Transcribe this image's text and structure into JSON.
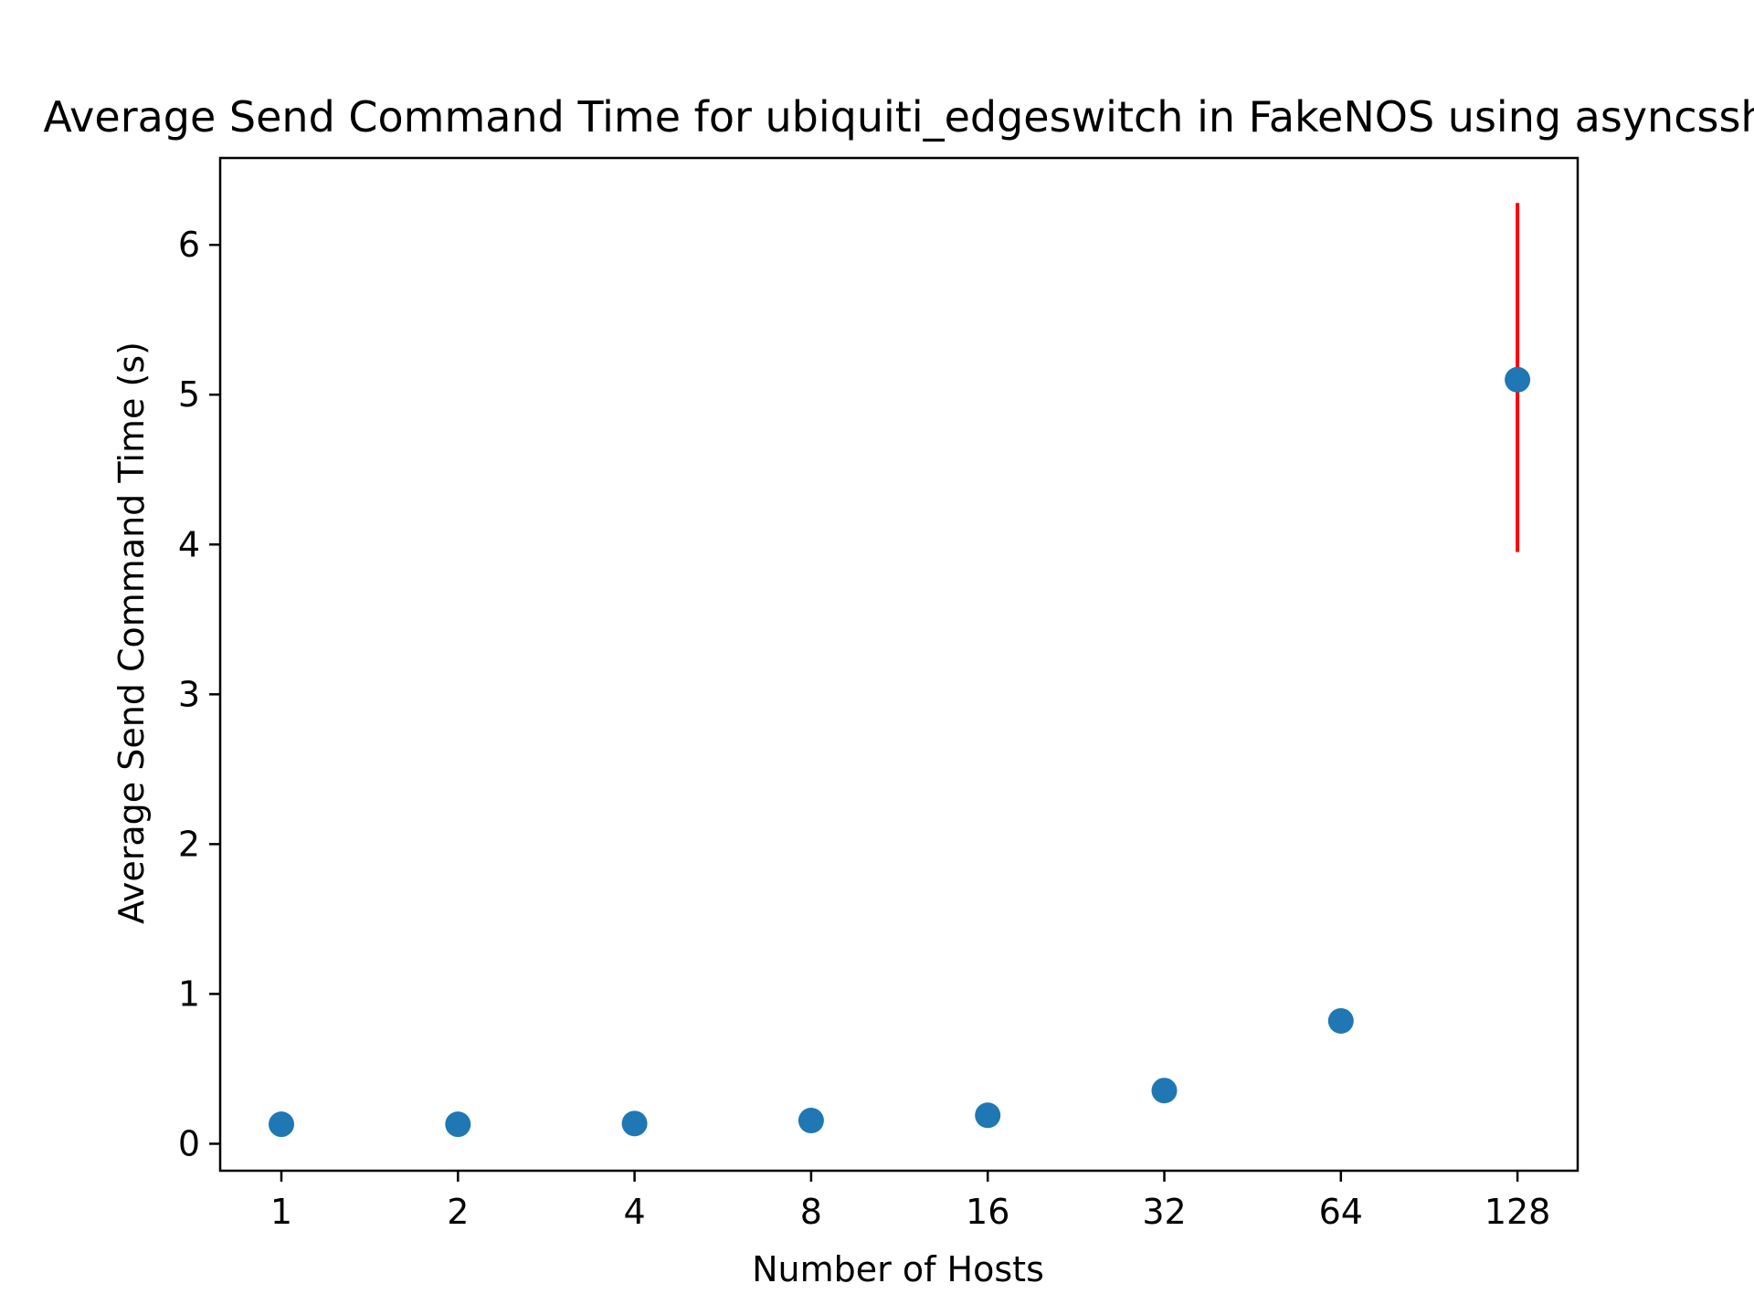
{
  "chart_data": {
    "type": "scatter",
    "title": "Average Send Command Time for ubiquiti_edgeswitch in FakeNOS using asyncssh",
    "xlabel": "Number of Hosts",
    "ylabel": "Average Send Command Time (s)",
    "x_scale": "log2",
    "x_ticks": [
      "1",
      "2",
      "4",
      "8",
      "16",
      "32",
      "64",
      "128"
    ],
    "y_ticks": [
      "0",
      "1",
      "2",
      "3",
      "4",
      "5",
      "6"
    ],
    "ylim": [
      -0.18,
      6.58
    ],
    "grid": false,
    "legend": "none",
    "series": [
      {
        "x": [
          1,
          2,
          4,
          8,
          16,
          32,
          64,
          128
        ],
        "y": [
          0.13,
          0.13,
          0.135,
          0.155,
          0.19,
          0.355,
          0.82,
          5.1
        ],
        "error_low": [
          null,
          null,
          null,
          null,
          null,
          null,
          null,
          3.95
        ],
        "error_high": [
          null,
          null,
          null,
          null,
          null,
          null,
          null,
          6.28
        ]
      }
    ],
    "colors": {
      "point": "#1f77b4",
      "errorbar": "#ff0000",
      "axes": "#000000"
    }
  }
}
